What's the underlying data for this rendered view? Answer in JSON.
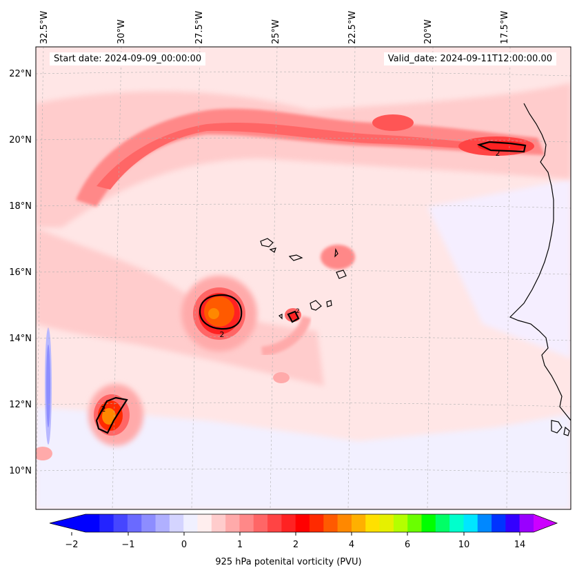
{
  "header": {
    "start_date": "Start date: 2024-09-09_00:00:00",
    "valid_date": "Valid_date: 2024-09-11T12:00:00.00"
  },
  "map": {
    "lon_labels": [
      "32.5°W",
      "30°W",
      "27.5°W",
      "25°W",
      "22.5°W",
      "20°W",
      "17.5°W"
    ],
    "lat_labels": [
      "22°N",
      "20°N",
      "18°N",
      "16°N",
      "14°N",
      "12°N",
      "10°N"
    ],
    "contour_labels": [
      "2",
      "2",
      "2",
      "2"
    ]
  },
  "colorbar": {
    "label": "925 hPa potenital vorticity (PVU)",
    "tick_labels": [
      "−2",
      "−1",
      "0",
      "1",
      "2",
      "4",
      "6",
      "10",
      "14"
    ],
    "colors": [
      "#0000ff",
      "#2323ff",
      "#4646ff",
      "#6a6aff",
      "#8d8dff",
      "#b0b0ff",
      "#d4d4ff",
      "#f0f0ff",
      "#ffeeee",
      "#ffcccc",
      "#ffaaaa",
      "#ff8888",
      "#ff6666",
      "#ff4444",
      "#ff2222",
      "#ff0000",
      "#ff2a00",
      "#ff5a00",
      "#ff8800",
      "#ffb000",
      "#ffe000",
      "#e6f000",
      "#b4ff00",
      "#6aff00",
      "#00ff00",
      "#00ff66",
      "#00ffcc",
      "#00e6ff",
      "#0088ff",
      "#0033ff",
      "#3300ff",
      "#9900ff"
    ],
    "under_color": "#0000ff",
    "over_color": "#cc00ff"
  }
}
